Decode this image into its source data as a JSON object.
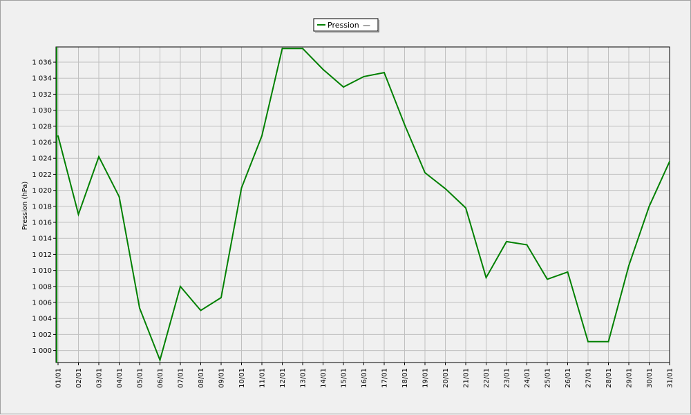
{
  "chart_data": {
    "type": "line",
    "title": "",
    "xlabel": "",
    "ylabel": "Pression (hPa)",
    "ylim": [
      998.5,
      1037.9
    ],
    "grid": true,
    "legend_position": "top-center",
    "legend": {
      "label": "Pression",
      "extra": "—"
    },
    "yticks": [
      {
        "value": 1000,
        "label": "1 000"
      },
      {
        "value": 1002,
        "label": "1 002"
      },
      {
        "value": 1004,
        "label": "1 004"
      },
      {
        "value": 1006,
        "label": "1 006"
      },
      {
        "value": 1008,
        "label": "1 008"
      },
      {
        "value": 1010,
        "label": "1 010"
      },
      {
        "value": 1012,
        "label": "1 012"
      },
      {
        "value": 1014,
        "label": "1 014"
      },
      {
        "value": 1016,
        "label": "1 016"
      },
      {
        "value": 1018,
        "label": "1 018"
      },
      {
        "value": 1020,
        "label": "1 020"
      },
      {
        "value": 1022,
        "label": "1 022"
      },
      {
        "value": 1024,
        "label": "1 024"
      },
      {
        "value": 1026,
        "label": "1 026"
      },
      {
        "value": 1028,
        "label": "1 028"
      },
      {
        "value": 1030,
        "label": "1 030"
      },
      {
        "value": 1032,
        "label": "1 032"
      },
      {
        "value": 1034,
        "label": "1 034"
      },
      {
        "value": 1036,
        "label": "1 036"
      }
    ],
    "categories": [
      "01/01",
      "02/01",
      "03/01",
      "04/01",
      "05/01",
      "06/01",
      "07/01",
      "08/01",
      "09/01",
      "10/01",
      "11/01",
      "12/01",
      "13/01",
      "14/01",
      "15/01",
      "16/01",
      "17/01",
      "18/01",
      "19/01",
      "20/01",
      "21/01",
      "22/01",
      "23/01",
      "24/01",
      "25/01",
      "26/01",
      "27/01",
      "28/01",
      "29/01",
      "30/01",
      "31/01"
    ],
    "series": [
      {
        "name": "Pression",
        "color": "#008000",
        "values": [
          1026.8,
          1017.0,
          1024.2,
          1019.2,
          1005.3,
          998.8,
          1008.0,
          1005.0,
          1006.6,
          1020.3,
          1026.8,
          1037.7,
          1037.7,
          1035.1,
          1032.9,
          1034.2,
          1034.7,
          1028.2,
          1022.2,
          1020.2,
          1017.8,
          1009.1,
          1013.6,
          1013.2,
          1008.9,
          1009.8,
          1001.1,
          1001.1,
          1010.6,
          1018.0,
          1023.6
        ]
      }
    ],
    "colors": {
      "plot_background": "#f0f0f0",
      "grid": "#c0c0c0",
      "axis": "#000000",
      "line": "#008000"
    }
  }
}
